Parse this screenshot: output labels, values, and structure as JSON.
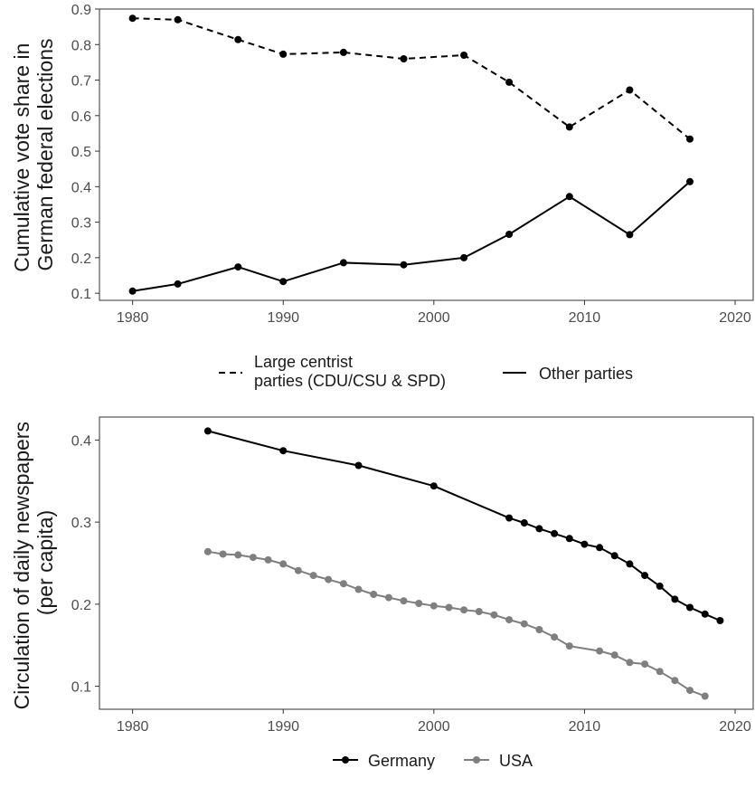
{
  "chart_data": [
    {
      "type": "line",
      "title": "",
      "ylabel": [
        "Cumulative vote share in",
        "German federal elections"
      ],
      "xlabel": "",
      "xlim": [
        1977.8,
        2021.2
      ],
      "ylim": [
        0.08,
        0.9
      ],
      "xticks": [
        1980,
        1990,
        2000,
        2010,
        2020
      ],
      "yticks": [
        0.1,
        0.2,
        0.3,
        0.4,
        0.5,
        0.6,
        0.7,
        0.8,
        0.9
      ],
      "ytick_labels": [
        "0.1",
        "0.2",
        "0.3",
        "0.4",
        "0.5",
        "0.6",
        "0.7",
        "0.8",
        "0.9"
      ],
      "grid": false,
      "legend_position": "bottom",
      "series": [
        {
          "name": [
            "Large centrist",
            "parties (CDU/CSU & SPD)"
          ],
          "style": "dashed",
          "color": "#000000",
          "x": [
            1980,
            1983,
            1987,
            1990,
            1994,
            1998,
            2002,
            2005,
            2009,
            2013,
            2017
          ],
          "y": [
            0.874,
            0.87,
            0.814,
            0.773,
            0.778,
            0.76,
            0.77,
            0.694,
            0.568,
            0.672,
            0.534
          ]
        },
        {
          "name": "Other parties",
          "style": "solid",
          "color": "#000000",
          "x": [
            1980,
            1983,
            1987,
            1990,
            1994,
            1998,
            2002,
            2005,
            2009,
            2013,
            2017
          ],
          "y": [
            0.106,
            0.126,
            0.174,
            0.133,
            0.186,
            0.18,
            0.2,
            0.266,
            0.372,
            0.265,
            0.414
          ]
        }
      ]
    },
    {
      "type": "line",
      "title": "",
      "ylabel": [
        "Circulation of daily newspapers",
        "(per capita)"
      ],
      "xlabel": "",
      "xlim": [
        1977.8,
        2021.2
      ],
      "ylim": [
        0.072,
        0.428
      ],
      "xticks": [
        1980,
        1990,
        2000,
        2010,
        2020
      ],
      "yticks": [
        0.1,
        0.2,
        0.3,
        0.4
      ],
      "ytick_labels": [
        "0.1",
        "0.2",
        "0.3",
        "0.4"
      ],
      "grid": false,
      "legend_position": "bottom",
      "series": [
        {
          "name": "Germany",
          "color": "#000000",
          "x": [
            1985,
            1990,
            1995,
            2000,
            2005,
            2006,
            2007,
            2008,
            2009,
            2010,
            2011,
            2012,
            2013,
            2014,
            2015,
            2016,
            2017,
            2018,
            2019
          ],
          "y": [
            0.411,
            0.387,
            0.369,
            0.344,
            0.305,
            0.299,
            0.292,
            0.286,
            0.28,
            0.273,
            0.269,
            0.259,
            0.249,
            0.235,
            0.222,
            0.206,
            0.196,
            0.188,
            0.18
          ]
        },
        {
          "name": "USA",
          "color": "#7f7f7f",
          "x": [
            1985,
            1986,
            1987,
            1988,
            1989,
            1990,
            1991,
            1992,
            1993,
            1994,
            1995,
            1996,
            1997,
            1998,
            1999,
            2000,
            2001,
            2002,
            2003,
            2004,
            2005,
            2006,
            2007,
            2008,
            2009,
            2011,
            2012,
            2013,
            2014,
            2015,
            2016,
            2017,
            2018
          ],
          "y": [
            0.264,
            0.261,
            0.26,
            0.257,
            0.254,
            0.249,
            0.241,
            0.235,
            0.23,
            0.225,
            0.218,
            0.212,
            0.208,
            0.204,
            0.201,
            0.198,
            0.196,
            0.193,
            0.191,
            0.187,
            0.181,
            0.176,
            0.169,
            0.16,
            0.149,
            0.143,
            0.138,
            0.129,
            0.127,
            0.118,
            0.107,
            0.095,
            0.088
          ]
        }
      ]
    }
  ]
}
